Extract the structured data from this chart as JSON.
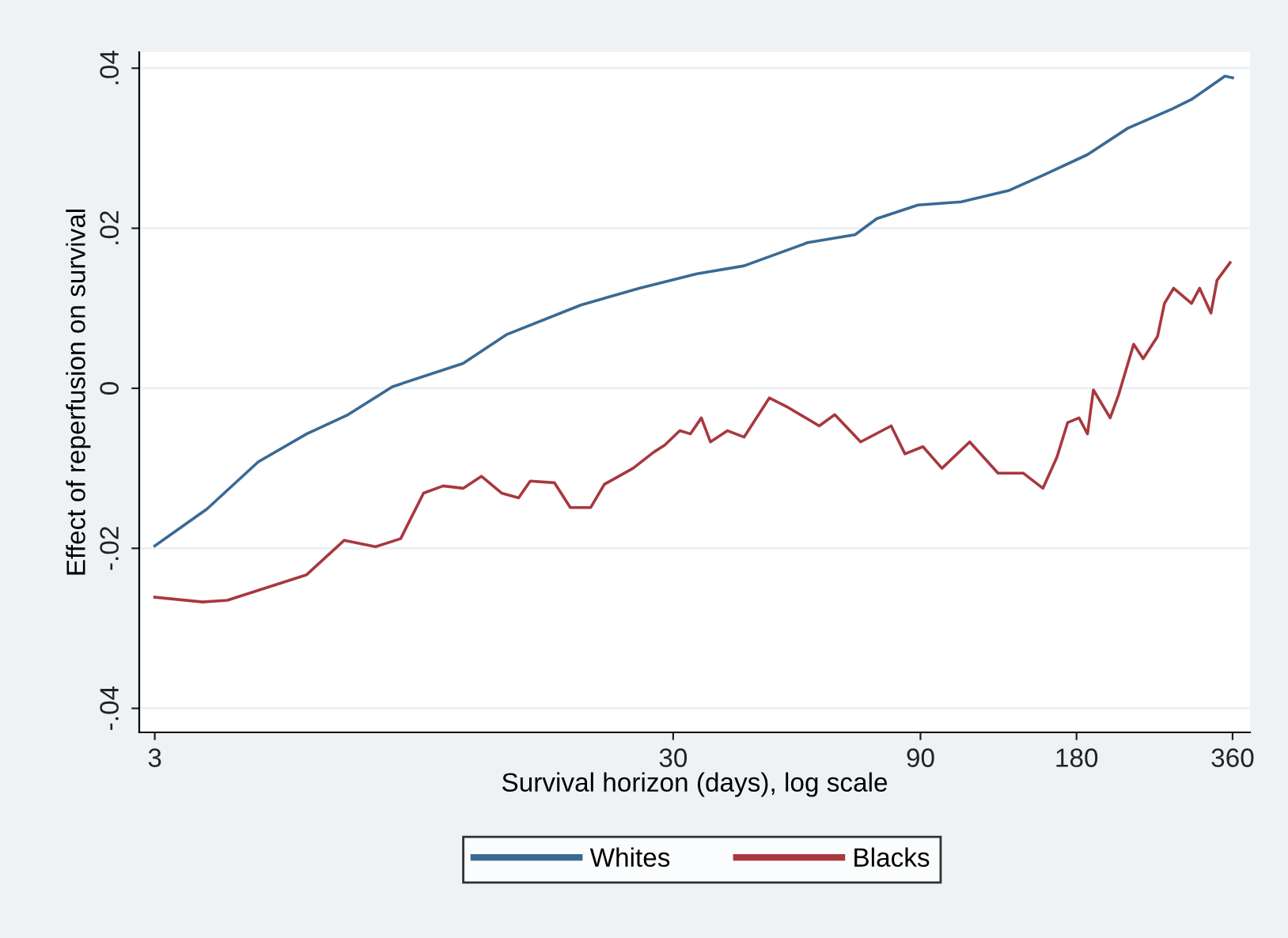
{
  "chart_data": {
    "type": "line",
    "xlabel": "Survival horizon (days), log scale",
    "ylabel": "Effect of reperfusion on survival",
    "log": "x",
    "grid": "y",
    "legend": "bottom",
    "marker": "none",
    "line_style": "solid",
    "xlim": [
      2.8,
      389
    ],
    "xticks": [
      3,
      30,
      90,
      180,
      360
    ],
    "ylim": [
      -0.043,
      0.042
    ],
    "yticks": [
      {
        "value": 0.04,
        "label": ".04"
      },
      {
        "value": 0.02,
        "label": ".02"
      },
      {
        "value": 0,
        "label": "0"
      },
      {
        "value": -0.02,
        "label": "-.02"
      },
      {
        "value": -0.04,
        "label": "-.04"
      }
    ],
    "series": [
      {
        "name": "Whites",
        "color": "#3a6a94",
        "x": [
          3,
          3.78,
          4.75,
          5.89,
          7.08,
          8.62,
          11.8,
          14.3,
          19.9,
          25.8,
          33.3,
          41.1,
          54.5,
          67.3,
          74.1,
          89,
          107.8,
          133,
          156,
          189,
          226,
          275,
          300,
          348,
          360
        ],
        "values": [
          -0.0197,
          -0.0151,
          -0.0092,
          -0.0057,
          -0.0033,
          0.0002,
          0.0031,
          0.0067,
          0.0104,
          0.0125,
          0.0143,
          0.0153,
          0.0182,
          0.0192,
          0.0212,
          0.0229,
          0.0233,
          0.0247,
          0.0267,
          0.0292,
          0.0325,
          0.0349,
          0.0361,
          0.039,
          0.0388
        ]
      },
      {
        "name": "Blacks",
        "color": "#a8383f",
        "x": [
          3,
          3.71,
          4.14,
          5.89,
          6.96,
          8.0,
          8.94,
          9.9,
          10.8,
          11.8,
          12.8,
          14.0,
          15.1,
          15.9,
          17.7,
          19.0,
          20.8,
          22.1,
          25.1,
          27.5,
          28.9,
          30.9,
          32.4,
          34.0,
          35.4,
          38.2,
          41.1,
          46.0,
          50,
          57.4,
          61.5,
          69,
          79,
          84,
          91,
          99,
          112,
          127,
          142,
          155,
          165,
          173,
          182,
          189,
          194,
          209,
          217,
          232,
          242,
          258,
          266,
          277,
          300,
          311,
          327,
          336,
          356
        ],
        "values": [
          -0.0261,
          -0.0267,
          -0.0265,
          -0.0233,
          -0.019,
          -0.0198,
          -0.0188,
          -0.0131,
          -0.0122,
          -0.0125,
          -0.011,
          -0.0131,
          -0.0137,
          -0.0116,
          -0.0118,
          -0.0149,
          -0.0149,
          -0.012,
          -0.01,
          -0.008,
          -0.0071,
          -0.0053,
          -0.0057,
          -0.0037,
          -0.0067,
          -0.0053,
          -0.0061,
          -0.0012,
          -0.0024,
          -0.0047,
          -0.0033,
          -0.0067,
          -0.0047,
          -0.0082,
          -0.0073,
          -0.01,
          -0.0067,
          -0.0106,
          -0.0106,
          -0.0125,
          -0.0086,
          -0.0043,
          -0.0037,
          -0.0057,
          -0.0002,
          -0.0037,
          -0.0008,
          0.0055,
          0.0037,
          0.0065,
          0.0106,
          0.0125,
          0.0106,
          0.0125,
          0.0094,
          0.0135,
          0.0157
        ]
      }
    ]
  }
}
